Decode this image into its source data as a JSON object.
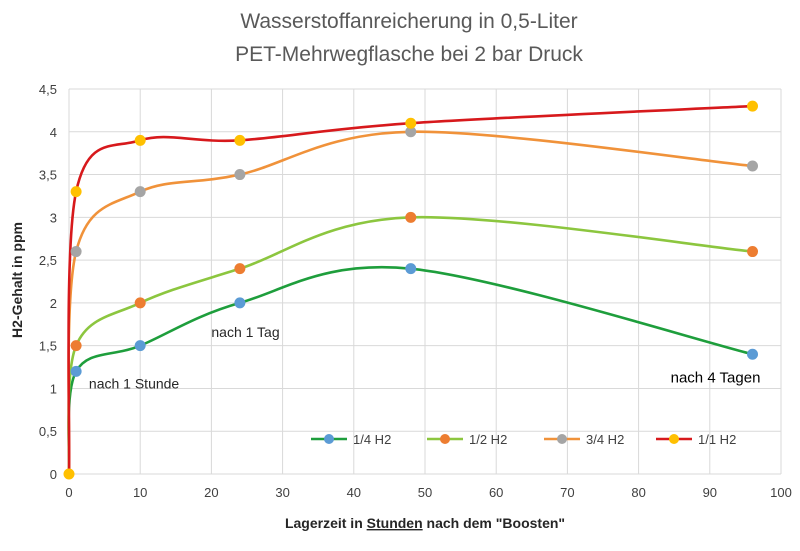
{
  "chart_data": {
    "type": "line",
    "title_line1": "Wasserstoffanreicherung in 0,5-Liter",
    "title_line2": "PET-Mehrwegflasche bei 2 bar Druck",
    "xlabel_pre": "Lagerzeit in ",
    "xlabel_underlined": "Stunden",
    "xlabel_post": " nach dem \"Boosten\"",
    "ylabel": "H2-Gehalt in ppm",
    "xlim": [
      0,
      100
    ],
    "ylim": [
      0,
      4.5
    ],
    "x_ticks": [
      0,
      10,
      20,
      30,
      40,
      50,
      60,
      70,
      80,
      90,
      100
    ],
    "x_tick_labels": [
      "0",
      "10",
      "20",
      "30",
      "40",
      "50",
      "60",
      "70",
      "80",
      "90",
      "100"
    ],
    "y_ticks": [
      0,
      0.5,
      1,
      1.5,
      2,
      2.5,
      3,
      3.5,
      4,
      4.5
    ],
    "y_tick_labels": [
      "0",
      "0,5",
      "1",
      "1,5",
      "2",
      "2,5",
      "3",
      "3,5",
      "4",
      "4,5"
    ],
    "grid": true,
    "legend_position": "bottom-right",
    "x": [
      0,
      1,
      10,
      24,
      48,
      96
    ],
    "series": [
      {
        "name": "1/4 H2",
        "values": [
          0,
          1.2,
          1.5,
          2.0,
          2.4,
          1.4
        ],
        "line_color": "#1e9e3c",
        "marker_color": "#5b9bd5"
      },
      {
        "name": "1/2 H2",
        "values": [
          0,
          1.5,
          2.0,
          2.4,
          3.0,
          2.6
        ],
        "line_color": "#8cc63f",
        "marker_color": "#ed7d31"
      },
      {
        "name": "3/4 H2",
        "values": [
          0,
          2.6,
          3.3,
          3.5,
          4.0,
          3.6
        ],
        "line_color": "#f0923a",
        "marker_color": "#a5a5a5"
      },
      {
        "name": "1/1 H2",
        "values": [
          0,
          3.3,
          3.9,
          3.9,
          4.1,
          4.3
        ],
        "line_color": "#d7191c",
        "marker_color": "#ffc000"
      }
    ],
    "annotations": [
      {
        "text": "nach 1 Stunde",
        "x": 2.8,
        "y": 1.0
      },
      {
        "text": "nach 1 Tag",
        "x": 20,
        "y": 1.6
      },
      {
        "text": "nach 4 Tagen",
        "x": 84.5,
        "y": 1.07
      }
    ]
  }
}
